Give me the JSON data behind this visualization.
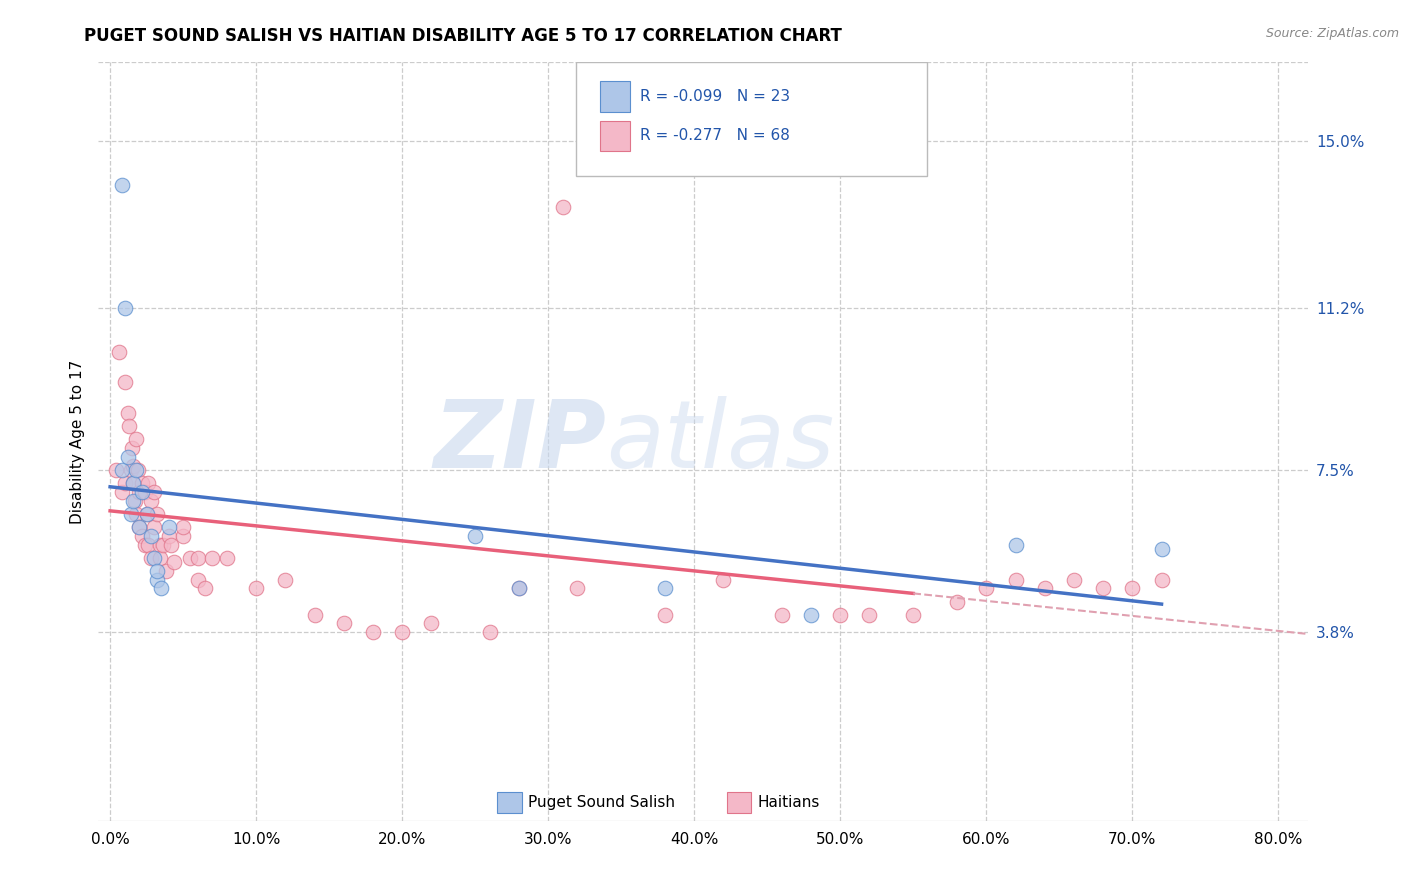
{
  "title": "PUGET SOUND SALISH VS HAITIAN DISABILITY AGE 5 TO 17 CORRELATION CHART",
  "source": "Source: ZipAtlas.com",
  "xlabel_ticks": [
    "0.0%",
    "10.0%",
    "20.0%",
    "30.0%",
    "40.0%",
    "50.0%",
    "60.0%",
    "70.0%",
    "80.0%"
  ],
  "xlabel_vals": [
    0.0,
    0.1,
    0.2,
    0.3,
    0.4,
    0.5,
    0.6,
    0.7,
    0.8
  ],
  "ylabel": "Disability Age 5 to 17",
  "ylabel_ticks_right": [
    "3.8%",
    "7.5%",
    "11.2%",
    "15.0%"
  ],
  "ylabel_vals_right": [
    0.038,
    0.075,
    0.112,
    0.15
  ],
  "ylim": [
    -0.005,
    0.168
  ],
  "xlim": [
    -0.008,
    0.82
  ],
  "watermark_zip": "ZIP",
  "watermark_atlas": "atlas",
  "legend_r1": "R = -0.099",
  "legend_n1": "N = 23",
  "legend_r2": "R = -0.277",
  "legend_n2": "N = 68",
  "color_blue_fill": "#aec6e8",
  "color_blue_edge": "#5b8fcf",
  "color_pink_fill": "#f4b8c8",
  "color_pink_edge": "#e0748a",
  "color_blue_line": "#4472c4",
  "color_pink_solid": "#e8607a",
  "color_pink_dashed": "#e0a0b0",
  "color_label_blue": "#2255aa",
  "blue_x": [
    0.008,
    0.008,
    0.01,
    0.012,
    0.014,
    0.016,
    0.016,
    0.018,
    0.02,
    0.022,
    0.025,
    0.028,
    0.03,
    0.032,
    0.032,
    0.035,
    0.04,
    0.25,
    0.28,
    0.38,
    0.48,
    0.62,
    0.72
  ],
  "blue_y": [
    0.075,
    0.14,
    0.112,
    0.078,
    0.065,
    0.068,
    0.072,
    0.075,
    0.062,
    0.07,
    0.065,
    0.06,
    0.055,
    0.05,
    0.052,
    0.048,
    0.062,
    0.06,
    0.048,
    0.048,
    0.042,
    0.058,
    0.057
  ],
  "pink_x": [
    0.004,
    0.006,
    0.008,
    0.01,
    0.01,
    0.012,
    0.013,
    0.014,
    0.015,
    0.016,
    0.016,
    0.017,
    0.018,
    0.018,
    0.019,
    0.02,
    0.02,
    0.022,
    0.022,
    0.024,
    0.024,
    0.025,
    0.026,
    0.026,
    0.028,
    0.028,
    0.03,
    0.03,
    0.032,
    0.034,
    0.034,
    0.036,
    0.038,
    0.04,
    0.042,
    0.044,
    0.05,
    0.05,
    0.055,
    0.06,
    0.06,
    0.065,
    0.07,
    0.08,
    0.1,
    0.12,
    0.14,
    0.16,
    0.18,
    0.2,
    0.22,
    0.26,
    0.28,
    0.32,
    0.38,
    0.42,
    0.46,
    0.5,
    0.52,
    0.55,
    0.58,
    0.6,
    0.62,
    0.64,
    0.66,
    0.68,
    0.7,
    0.72
  ],
  "pink_y": [
    0.075,
    0.102,
    0.07,
    0.072,
    0.095,
    0.088,
    0.085,
    0.075,
    0.08,
    0.072,
    0.076,
    0.068,
    0.065,
    0.082,
    0.075,
    0.07,
    0.062,
    0.072,
    0.06,
    0.058,
    0.07,
    0.065,
    0.058,
    0.072,
    0.068,
    0.055,
    0.062,
    0.07,
    0.065,
    0.058,
    0.055,
    0.058,
    0.052,
    0.06,
    0.058,
    0.054,
    0.06,
    0.062,
    0.055,
    0.055,
    0.05,
    0.048,
    0.055,
    0.055,
    0.048,
    0.05,
    0.042,
    0.04,
    0.038,
    0.038,
    0.04,
    0.038,
    0.048,
    0.048,
    0.042,
    0.05,
    0.042,
    0.042,
    0.042,
    0.042,
    0.045,
    0.048,
    0.05,
    0.048,
    0.05,
    0.048,
    0.048,
    0.05
  ],
  "pink_high_x": [
    0.31
  ],
  "pink_high_y": [
    0.135
  ]
}
